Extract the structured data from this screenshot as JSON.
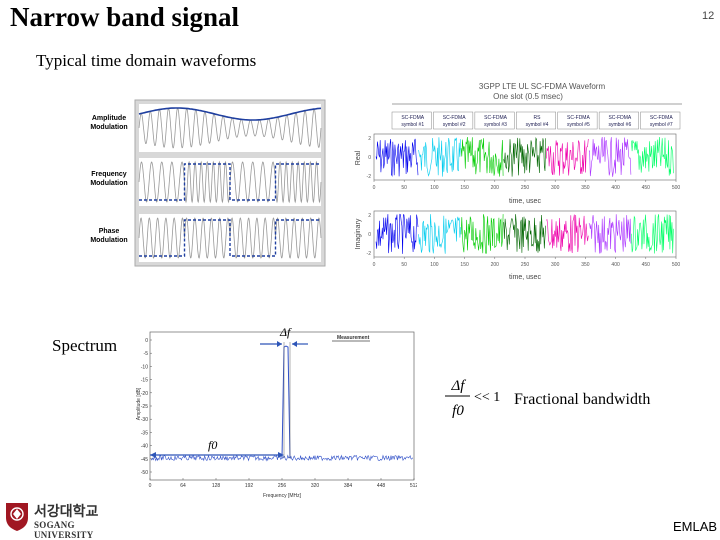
{
  "slide": {
    "title": "Narrow band signal",
    "page_number": "12",
    "subtitle": "Typical time domain waveforms",
    "spectrum_label": "Spectrum",
    "fractional_label": "Fractional bandwidth",
    "footer": "EMLAB"
  },
  "modulation_figure": {
    "rows": [
      {
        "label_line1": "Amplitude",
        "label_line2": "Modulation"
      },
      {
        "label_line1": "Frequency",
        "label_line2": "Modulation"
      },
      {
        "label_line1": "Phase",
        "label_line2": "Modulation"
      }
    ]
  },
  "lte_figure": {
    "title_line1": "3GPP LTE UL SC-FDMA Waveform",
    "title_line2": "One slot (0.5 msec)",
    "symbols": [
      {
        "line1": "SC-FDMA",
        "line2": "symbol #1",
        "color": "#0000ee"
      },
      {
        "line1": "SC-FDMA",
        "line2": "symbol #2",
        "color": "#00ccee"
      },
      {
        "line1": "SC-FDMA",
        "line2": "symbol #3",
        "color": "#00cc00"
      },
      {
        "line1": "RS",
        "line2": "symbol #4",
        "color": "#006600"
      },
      {
        "line1": "SC-FDMA",
        "line2": "symbol #5",
        "color": "#ee00aa"
      },
      {
        "line1": "SC-FDMA",
        "line2": "symbol #6",
        "color": "#aa33ff"
      },
      {
        "line1": "SC-FDMA",
        "line2": "symbol #7",
        "color": "#00ff66"
      }
    ],
    "real_ylabel": "Real",
    "imag_ylabel": "Imaginary",
    "xlabel": "time, usec",
    "xticks": [
      "0",
      "50",
      "100",
      "150",
      "200",
      "250",
      "300",
      "350",
      "400",
      "450",
      "500"
    ],
    "real_yticks": [
      "2",
      "0",
      "-2"
    ],
    "imag_yticks": [
      "2",
      "0",
      "-2"
    ]
  },
  "spectrum_figure": {
    "legend": "Measurement",
    "ylabel": "Amplitude [dB]",
    "xlabel": "Frequency [MHz]",
    "xticks": [
      "0",
      "64",
      "128",
      "192",
      "256",
      "320",
      "384",
      "448",
      "512"
    ],
    "yticks": [
      "0",
      "-5",
      "-10",
      "-15",
      "-20",
      "-25",
      "-30",
      "-35",
      "-40",
      "-45",
      "-50"
    ],
    "delta_f_label": "Δf",
    "f0_label": "f0"
  },
  "formula": {
    "numerator": "Δf",
    "denominator": "f0",
    "relation": "<< 1"
  },
  "logo": {
    "korean_name": "서강대학교",
    "english_name": "SOGANG UNIVERSITY"
  },
  "colors": {
    "signal_gray": "#999999",
    "envelope_blue": "#1f3f9f",
    "spectrum_blue": "#3050c8"
  }
}
